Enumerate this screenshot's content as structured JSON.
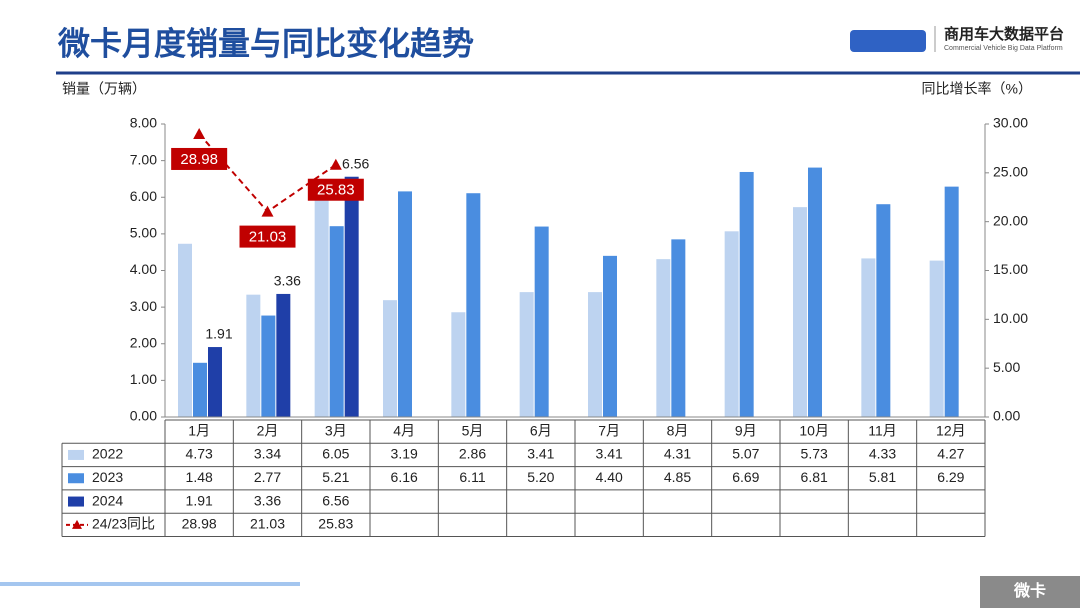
{
  "header": {
    "title": "微卡月度销量与同比变化趋势",
    "logo_name": "商用车大数据平台",
    "logo_subtitle": "Commercial Vehicle Big Data Platform"
  },
  "footer": {
    "tag": "微卡"
  },
  "chart_data": {
    "type": "bar",
    "y_label": "销量（万辆）",
    "y2_label": "同比增长率（%）",
    "categories": [
      "1月",
      "2月",
      "3月",
      "4月",
      "5月",
      "6月",
      "7月",
      "8月",
      "9月",
      "10月",
      "11月",
      "12月"
    ],
    "series": [
      {
        "name": "2022",
        "color": "#bdd3f0",
        "values": [
          4.73,
          3.34,
          6.05,
          3.19,
          2.86,
          3.41,
          3.41,
          4.31,
          5.07,
          5.73,
          4.33,
          4.27
        ],
        "value_labels": [
          "4.73",
          "3.34",
          "6.05",
          "3.19",
          "2.86",
          "3.41",
          "3.41",
          "4.31",
          "5.07",
          "5.73",
          "4.33",
          "4.27"
        ]
      },
      {
        "name": "2023",
        "color": "#4a8de0",
        "values": [
          1.48,
          2.77,
          5.21,
          6.16,
          6.11,
          5.2,
          4.4,
          4.85,
          6.69,
          6.81,
          5.81,
          6.29
        ],
        "value_labels": [
          "1.48",
          "2.77",
          "5.21",
          "6.16",
          "6.11",
          "5.20",
          "4.40",
          "4.85",
          "6.69",
          "6.81",
          "5.81",
          "6.29"
        ]
      },
      {
        "name": "2024",
        "color": "#1f3fa8",
        "values": [
          1.91,
          3.36,
          6.56,
          null,
          null,
          null,
          null,
          null,
          null,
          null,
          null,
          null
        ],
        "value_labels": [
          "1.91",
          "3.36",
          "6.56",
          null,
          null,
          null,
          null,
          null,
          null,
          null,
          null,
          null
        ]
      },
      {
        "name": "24/23同比",
        "color": "#c00000",
        "type": "line",
        "axis": "y2",
        "values": [
          28.98,
          21.03,
          25.83,
          null,
          null,
          null,
          null,
          null,
          null,
          null,
          null,
          null
        ]
      }
    ],
    "ylim": [
      0,
      8
    ],
    "yticks": [
      {
        "value": 0,
        "label": "0.00"
      },
      {
        "value": 1,
        "label": "1.00"
      },
      {
        "value": 2,
        "label": "2.00"
      },
      {
        "value": 3,
        "label": "3.00"
      },
      {
        "value": 4,
        "label": "4.00"
      },
      {
        "value": 5,
        "label": "5.00"
      },
      {
        "value": 6,
        "label": "6.00"
      },
      {
        "value": 7,
        "label": "7.00"
      },
      {
        "value": 8,
        "label": "8.00"
      }
    ],
    "y2lim": [
      0,
      30
    ],
    "y2ticks": [
      {
        "value": 0,
        "label": "0.00"
      },
      {
        "value": 5,
        "label": "5.00"
      },
      {
        "value": 10,
        "label": "10.00"
      },
      {
        "value": 15,
        "label": "15.00"
      },
      {
        "value": 20,
        "label": "20.00"
      },
      {
        "value": 25,
        "label": "25.00"
      },
      {
        "value": 30,
        "label": "30.00"
      }
    ]
  }
}
